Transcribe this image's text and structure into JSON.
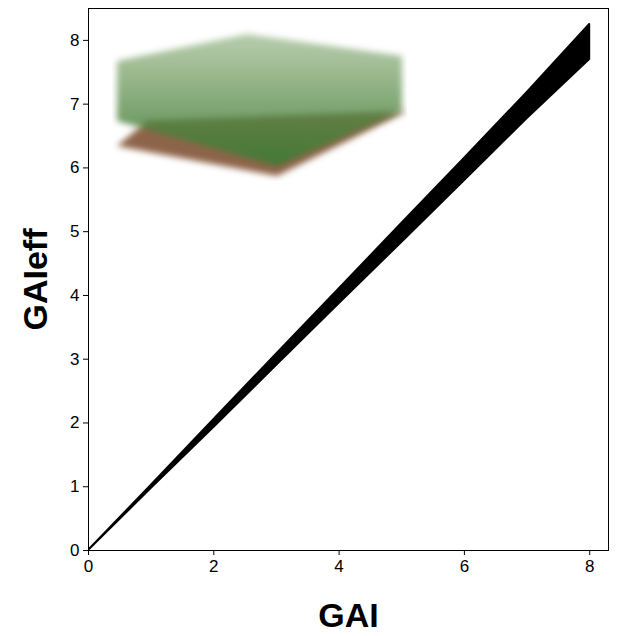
{
  "chart_data": {
    "type": "band",
    "xlabel": "GAI",
    "ylabel": "GAIeff",
    "x": [
      0,
      1,
      2,
      3,
      4,
      5,
      6,
      7,
      8
    ],
    "lower": [
      0,
      0.97,
      1.93,
      2.9,
      3.87,
      4.83,
      5.8,
      6.77,
      7.7
    ],
    "upper": [
      0,
      1.02,
      2.05,
      3.08,
      4.1,
      5.13,
      6.15,
      7.18,
      8.25
    ],
    "color": "#000000",
    "xlim": [
      0,
      8.3
    ],
    "ylim": [
      0,
      8.5
    ],
    "xticks": [
      0,
      2,
      4,
      6,
      8
    ],
    "yticks": [
      0,
      1,
      2,
      3,
      4,
      5,
      6,
      7,
      8
    ],
    "grid": false
  }
}
